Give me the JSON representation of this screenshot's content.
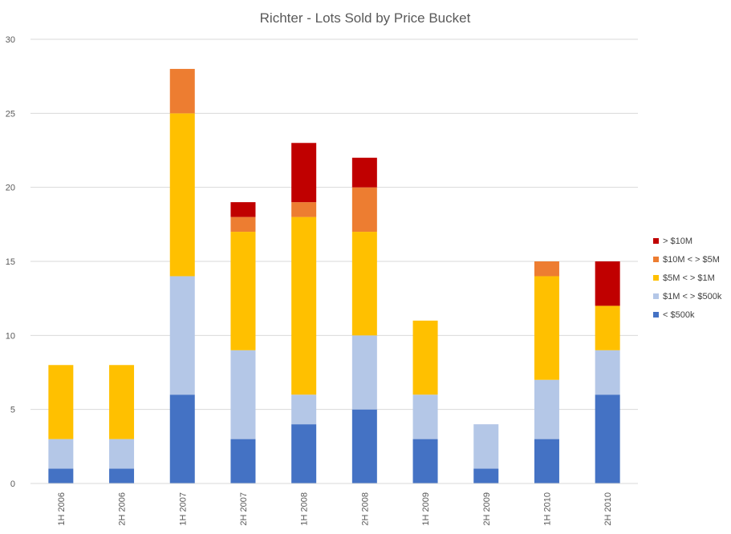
{
  "chart_data": {
    "type": "bar",
    "stacked": true,
    "title": "Richter - Lots Sold by Price Bucket",
    "xlabel": "",
    "ylabel": "",
    "ylim": [
      0,
      30
    ],
    "yticks": [
      0,
      5,
      10,
      15,
      20,
      25,
      30
    ],
    "grid": true,
    "legend_position": "right",
    "categories": [
      "1H 2006",
      "2H 2006",
      "1H 2007",
      "2H 2007",
      "1H 2008",
      "2H 2008",
      "1H 2009",
      "2H 2009",
      "1H 2010",
      "2H 2010"
    ],
    "series": [
      {
        "name": "< $500k",
        "color": "#4472C4",
        "values": [
          1,
          1,
          6,
          3,
          4,
          5,
          3,
          1,
          3,
          6
        ]
      },
      {
        "name": "$1M < > $500k",
        "color": "#B4C7E7",
        "values": [
          2,
          2,
          8,
          6,
          2,
          5,
          3,
          3,
          4,
          3
        ]
      },
      {
        "name": "$5M < > $1M",
        "color": "#FFC000",
        "values": [
          5,
          5,
          11,
          8,
          12,
          7,
          5,
          0,
          7,
          3
        ]
      },
      {
        "name": "$10M < > $5M",
        "color": "#ED7D31",
        "values": [
          0,
          0,
          3,
          1,
          1,
          3,
          0,
          0,
          1,
          0
        ]
      },
      {
        "name": "> $10M",
        "color": "#C00000",
        "values": [
          0,
          0,
          0,
          1,
          4,
          2,
          0,
          0,
          0,
          3
        ]
      }
    ]
  }
}
